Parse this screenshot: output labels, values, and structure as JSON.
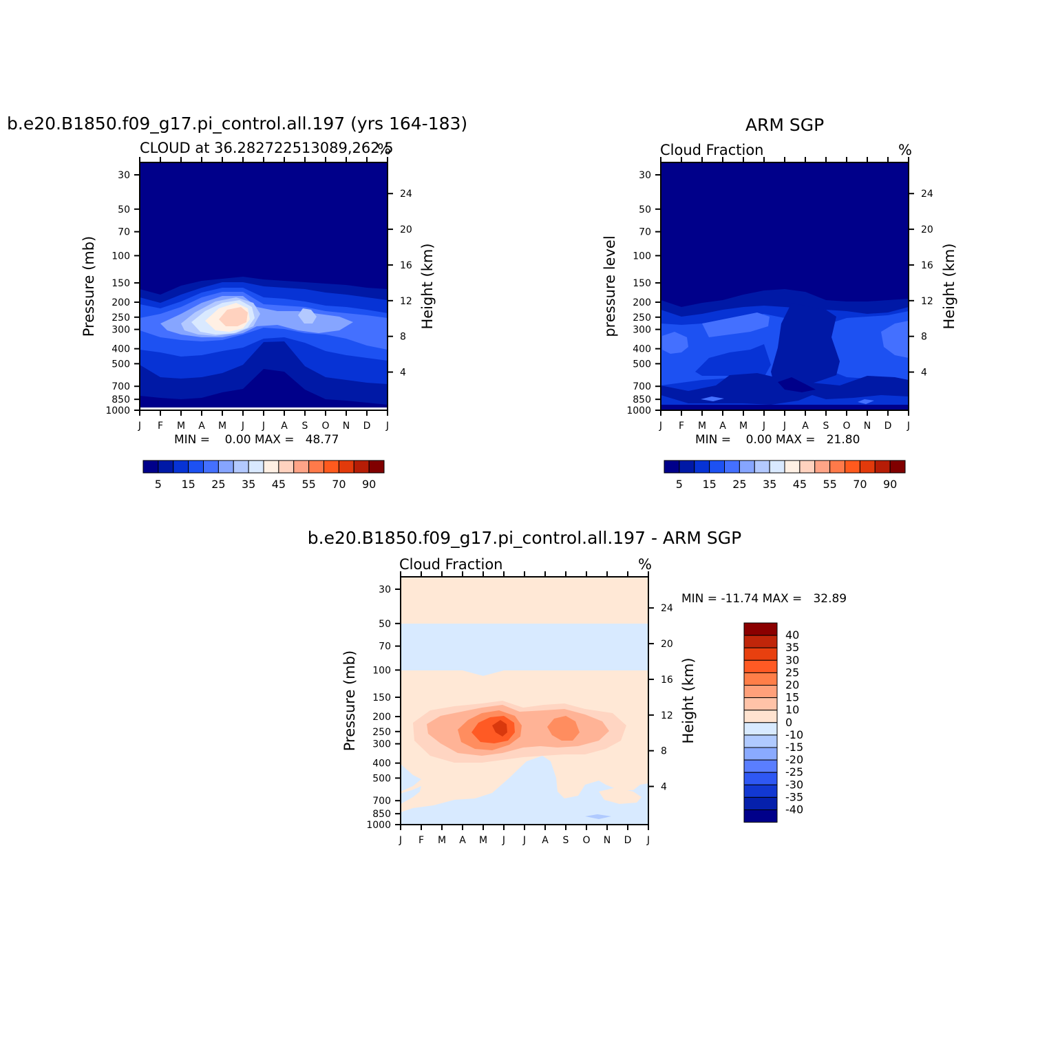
{
  "chart_data": [
    {
      "type": "heatmap",
      "title": "b.e20.B1850.f09_g17.pi_control.all.197 (yrs 164-183)",
      "subtitle_left": "CLOUD at 36.282722513089,262.5",
      "subtitle_right": "%",
      "ylabel": "Pressure (mb)",
      "ylabel_right": "Height (km)",
      "x_ticks": [
        "J",
        "F",
        "M",
        "A",
        "M",
        "J",
        "J",
        "A",
        "S",
        "O",
        "N",
        "D",
        "J"
      ],
      "y_ticks": [
        30,
        50,
        70,
        100,
        150,
        200,
        250,
        300,
        400,
        500,
        700,
        850,
        1000
      ],
      "y_right_ticks": [
        24,
        20,
        16,
        12,
        8,
        4
      ],
      "stat_text": "MIN =    0.00 MAX =   48.77",
      "min": 0.0,
      "max": 48.77,
      "colorbar_labels": [
        "5",
        "15",
        "25",
        "35",
        "45",
        "55",
        "70",
        "90"
      ],
      "colorbar_colors": [
        "#00008a",
        "#0019a6",
        "#0733d5",
        "#1d51f2",
        "#4470ff",
        "#86a5ff",
        "#b3c9ff",
        "#d9e9ff",
        "#fff0e4",
        "#ffd2bf",
        "#ffa487",
        "#ff7a4a",
        "#ff5a1e",
        "#e23a0b",
        "#b61d06",
        "#800000"
      ],
      "highlight": "maximum near 250 mb in late May / June"
    },
    {
      "type": "heatmap",
      "title": "ARM SGP",
      "subtitle_left": "Cloud Fraction",
      "subtitle_right": "%",
      "ylabel": "pressure level",
      "ylabel_right": "Height (km)",
      "x_ticks": [
        "J",
        "F",
        "M",
        "A",
        "M",
        "J",
        "J",
        "A",
        "S",
        "O",
        "N",
        "D",
        "J"
      ],
      "y_ticks": [
        30,
        50,
        70,
        100,
        150,
        200,
        250,
        300,
        400,
        500,
        700,
        850,
        1000
      ],
      "y_right_ticks": [
        24,
        20,
        16,
        12,
        8,
        4
      ],
      "stat_text": "MIN =    0.00 MAX =   21.80",
      "min": 0.0,
      "max": 21.8,
      "colorbar_labels": [
        "5",
        "15",
        "25",
        "35",
        "45",
        "55",
        "70",
        "90"
      ],
      "colorbar_colors": [
        "#00008a",
        "#0019a6",
        "#0733d5",
        "#1d51f2",
        "#4470ff",
        "#86a5ff",
        "#b3c9ff",
        "#d9e9ff",
        "#fff0e4",
        "#ffd2bf",
        "#ffa487",
        "#ff7a4a",
        "#ff5a1e",
        "#e23a0b",
        "#b61d06",
        "#800000"
      ]
    },
    {
      "type": "heatmap",
      "title": "b.e20.B1850.f09_g17.pi_control.all.197 - ARM SGP",
      "subtitle_left": "Cloud Fraction",
      "subtitle_right": "%",
      "ylabel": "Pressure (mb)",
      "ylabel_right": "Height (km)",
      "x_ticks": [
        "J",
        "F",
        "M",
        "A",
        "M",
        "J",
        "J",
        "A",
        "S",
        "O",
        "N",
        "D",
        "J"
      ],
      "y_ticks": [
        30,
        50,
        70,
        100,
        150,
        200,
        250,
        300,
        400,
        500,
        700,
        850,
        1000
      ],
      "y_right_ticks": [
        24,
        20,
        16,
        12,
        8,
        4
      ],
      "stat_text": "MIN = -11.74 MAX =   32.89",
      "min": -11.74,
      "max": 32.89,
      "colorbar_labels": [
        "40",
        "35",
        "30",
        "25",
        "20",
        "15",
        "10",
        "0",
        "-10",
        "-15",
        "-20",
        "-25",
        "-30",
        "-35",
        "-40"
      ],
      "colorbar_colors": [
        "#8b0000",
        "#c0260a",
        "#e8400f",
        "#ff5a24",
        "#ff7e48",
        "#ffa07a",
        "#ffc3a8",
        "#ffe3d0",
        "#d8eaff",
        "#b0caff",
        "#8aaaff",
        "#5a7eff",
        "#2f58f3",
        "#1238d2",
        "#0520ac",
        "#00008a"
      ]
    }
  ]
}
